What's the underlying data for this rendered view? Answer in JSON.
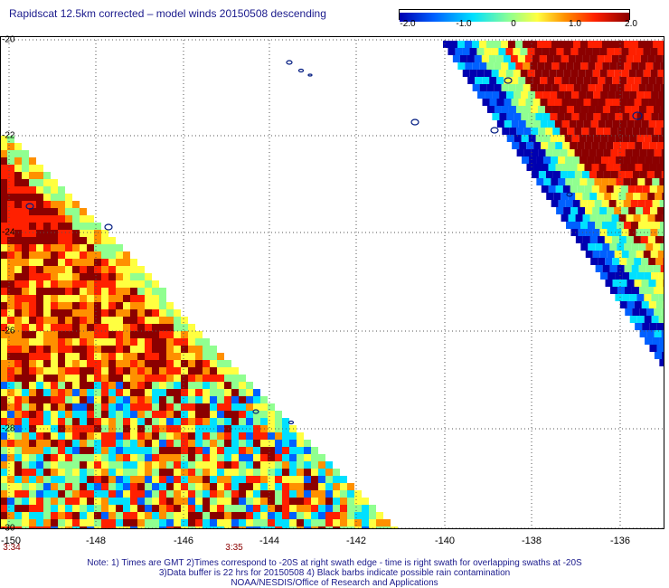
{
  "title": "Rapidscat 12.5km corrected – model winds 20150508 descending",
  "colorbar": {
    "ticks": [
      "-2.0",
      "-1.0",
      "0",
      "1.0",
      "2.0"
    ],
    "range": [
      -2.0,
      2.0
    ],
    "colors": [
      "#0000b0",
      "#0060ff",
      "#00e0ff",
      "#90ff90",
      "#ffff40",
      "#ff9000",
      "#ff2000",
      "#8b0000"
    ]
  },
  "map": {
    "lat_labels": [
      "-20",
      "-22",
      "-24",
      "-26",
      "-28",
      "-30"
    ],
    "lon_labels": [
      "-150",
      "-148",
      "-146",
      "-144",
      "-142",
      "-140",
      "-138",
      "-136"
    ],
    "time_labels": [
      "3:34",
      "3:35"
    ]
  },
  "notes": {
    "line1": "Note: 1) Times are GMT 2)Times correspond to -20S at right swath edge - time is right swath for overlapping swaths at -20S",
    "line2": "3)Data buffer is 22 hrs for 20150508 4) Black barbs indicate possible rain contamination",
    "line3": "NOAA/NESDIS/Office of Research and Applications"
  }
}
